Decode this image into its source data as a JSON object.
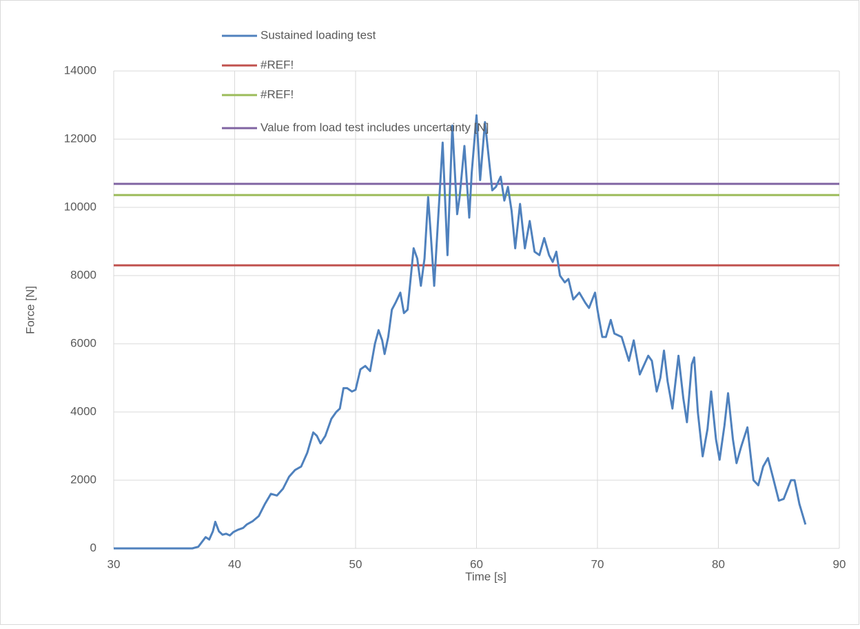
{
  "chart_data": {
    "type": "line",
    "xlabel": "Time [s]",
    "ylabel": "Force [N]",
    "xlim": [
      30,
      90
    ],
    "xticks": [
      30,
      40,
      50,
      60,
      70,
      80,
      90
    ],
    "ylim": [
      0,
      14000
    ],
    "yticks": [
      0,
      2000,
      4000,
      6000,
      8000,
      10000,
      12000,
      14000
    ],
    "grid": true,
    "legend": "top",
    "series": [
      {
        "name": "Sustained loading test",
        "color": "#4f81bd",
        "x": [
          30,
          35,
          36.5,
          37,
          37.6,
          37.9,
          38.2,
          38.4,
          38.7,
          39,
          39.3,
          39.6,
          39.9,
          40.3,
          40.7,
          41,
          41.5,
          42,
          42.5,
          43,
          43.5,
          44,
          44.5,
          45,
          45.5,
          46,
          46.5,
          46.8,
          47.1,
          47.5,
          48,
          48.4,
          48.7,
          49,
          49.3,
          49.7,
          50,
          50.4,
          50.8,
          51.2,
          51.6,
          51.9,
          52.2,
          52.4,
          52.7,
          53,
          53.3,
          53.7,
          54,
          54.3,
          54.8,
          55.1,
          55.4,
          55.7,
          56,
          56.2,
          56.5,
          56.8,
          57.2,
          57.6,
          58,
          58.4,
          58.6,
          59,
          59.4,
          59.6,
          60,
          60.3,
          60.7,
          61,
          61.3,
          61.6,
          62,
          62.3,
          62.6,
          62.9,
          63.2,
          63.6,
          64,
          64.4,
          64.8,
          65.2,
          65.6,
          66,
          66.3,
          66.6,
          66.9,
          67.3,
          67.6,
          68,
          68.5,
          69,
          69.3,
          69.8,
          70,
          70.4,
          70.7,
          71.1,
          71.4,
          72,
          72.6,
          73,
          73.5,
          74.2,
          74.5,
          74.9,
          75.2,
          75.5,
          75.8,
          76.2,
          76.7,
          77.1,
          77.4,
          77.8,
          78,
          78.3,
          78.7,
          79.1,
          79.4,
          79.8,
          80.1,
          80.5,
          80.8,
          81.2,
          81.5,
          81.9,
          82.4,
          82.9,
          83.3,
          83.7,
          84.1,
          84.5,
          85,
          85.4,
          86,
          86.3,
          86.7,
          87.2
        ],
        "values": [
          0,
          0,
          0,
          50,
          330,
          260,
          500,
          780,
          500,
          400,
          430,
          380,
          480,
          550,
          600,
          700,
          800,
          950,
          1300,
          1600,
          1550,
          1750,
          2100,
          2300,
          2400,
          2800,
          3400,
          3300,
          3080,
          3300,
          3800,
          4000,
          4100,
          4700,
          4700,
          4600,
          4650,
          5250,
          5350,
          5200,
          6000,
          6400,
          6100,
          5700,
          6200,
          7000,
          7200,
          7500,
          6900,
          7000,
          8800,
          8500,
          7700,
          8500,
          10300,
          9300,
          7700,
          9500,
          11900,
          8600,
          12400,
          9800,
          10300,
          11800,
          9700,
          11000,
          12700,
          10800,
          12500,
          11500,
          10500,
          10600,
          10900,
          10200,
          10600,
          9900,
          8800,
          10100,
          8800,
          9600,
          8700,
          8600,
          9100,
          8600,
          8400,
          8700,
          8000,
          7800,
          7900,
          7300,
          7500,
          7200,
          7050,
          7500,
          7000,
          6200,
          6200,
          6700,
          6300,
          6200,
          5500,
          6100,
          5100,
          5650,
          5500,
          4600,
          5000,
          5800,
          4900,
          4100,
          5650,
          4400,
          3700,
          5400,
          5600,
          4000,
          2700,
          3500,
          4600,
          3200,
          2600,
          3600,
          4550,
          3200,
          2500,
          3000,
          3550,
          2000,
          1850,
          2400,
          2650,
          2100,
          1400,
          1450,
          2000,
          2000,
          1300,
          700
        ]
      },
      {
        "name": "#REF!",
        "color": "#c0504d",
        "x": [
          30,
          90
        ],
        "values": [
          8300,
          8300
        ]
      },
      {
        "name": "#REF!",
        "color": "#9bbb59",
        "x": [
          30,
          90
        ],
        "values": [
          10360,
          10360
        ]
      },
      {
        "name": "Value from load test includes uncertainty [N]",
        "color": "#8064a2",
        "x": [
          30,
          90
        ],
        "values": [
          10690,
          10690
        ]
      }
    ]
  }
}
